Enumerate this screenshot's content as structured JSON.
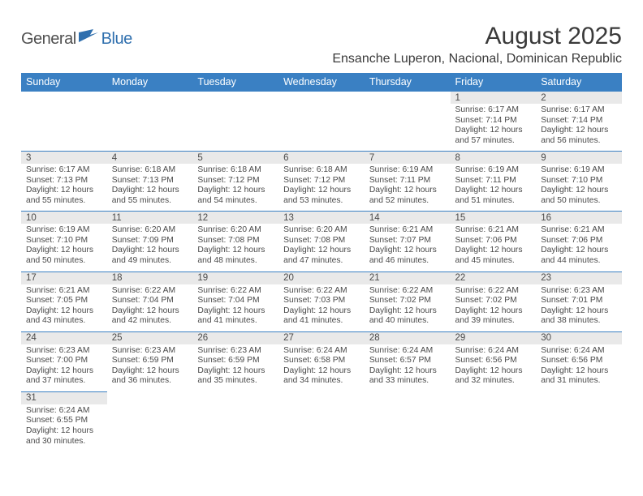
{
  "brand": {
    "general": "General",
    "blue": "Blue"
  },
  "title": "August 2025",
  "location": "Ensanche Luperon, Nacional, Dominican Republic",
  "colors": {
    "header_bg": "#3a80c3",
    "header_text": "#ffffff",
    "daynum_bg": "#e9e9e9",
    "row_divider": "#3a80c3",
    "body_text": "#4a4a4a",
    "logo_blue": "#2f6fae"
  },
  "weekdays": [
    "Sunday",
    "Monday",
    "Tuesday",
    "Wednesday",
    "Thursday",
    "Friday",
    "Saturday"
  ],
  "weeks": [
    [
      null,
      null,
      null,
      null,
      null,
      {
        "d": "1",
        "sr": "6:17 AM",
        "ss": "7:14 PM",
        "dl": "12 hours and 57 minutes."
      },
      {
        "d": "2",
        "sr": "6:17 AM",
        "ss": "7:14 PM",
        "dl": "12 hours and 56 minutes."
      }
    ],
    [
      {
        "d": "3",
        "sr": "6:17 AM",
        "ss": "7:13 PM",
        "dl": "12 hours and 55 minutes."
      },
      {
        "d": "4",
        "sr": "6:18 AM",
        "ss": "7:13 PM",
        "dl": "12 hours and 55 minutes."
      },
      {
        "d": "5",
        "sr": "6:18 AM",
        "ss": "7:12 PM",
        "dl": "12 hours and 54 minutes."
      },
      {
        "d": "6",
        "sr": "6:18 AM",
        "ss": "7:12 PM",
        "dl": "12 hours and 53 minutes."
      },
      {
        "d": "7",
        "sr": "6:19 AM",
        "ss": "7:11 PM",
        "dl": "12 hours and 52 minutes."
      },
      {
        "d": "8",
        "sr": "6:19 AM",
        "ss": "7:11 PM",
        "dl": "12 hours and 51 minutes."
      },
      {
        "d": "9",
        "sr": "6:19 AM",
        "ss": "7:10 PM",
        "dl": "12 hours and 50 minutes."
      }
    ],
    [
      {
        "d": "10",
        "sr": "6:19 AM",
        "ss": "7:10 PM",
        "dl": "12 hours and 50 minutes."
      },
      {
        "d": "11",
        "sr": "6:20 AM",
        "ss": "7:09 PM",
        "dl": "12 hours and 49 minutes."
      },
      {
        "d": "12",
        "sr": "6:20 AM",
        "ss": "7:08 PM",
        "dl": "12 hours and 48 minutes."
      },
      {
        "d": "13",
        "sr": "6:20 AM",
        "ss": "7:08 PM",
        "dl": "12 hours and 47 minutes."
      },
      {
        "d": "14",
        "sr": "6:21 AM",
        "ss": "7:07 PM",
        "dl": "12 hours and 46 minutes."
      },
      {
        "d": "15",
        "sr": "6:21 AM",
        "ss": "7:06 PM",
        "dl": "12 hours and 45 minutes."
      },
      {
        "d": "16",
        "sr": "6:21 AM",
        "ss": "7:06 PM",
        "dl": "12 hours and 44 minutes."
      }
    ],
    [
      {
        "d": "17",
        "sr": "6:21 AM",
        "ss": "7:05 PM",
        "dl": "12 hours and 43 minutes."
      },
      {
        "d": "18",
        "sr": "6:22 AM",
        "ss": "7:04 PM",
        "dl": "12 hours and 42 minutes."
      },
      {
        "d": "19",
        "sr": "6:22 AM",
        "ss": "7:04 PM",
        "dl": "12 hours and 41 minutes."
      },
      {
        "d": "20",
        "sr": "6:22 AM",
        "ss": "7:03 PM",
        "dl": "12 hours and 41 minutes."
      },
      {
        "d": "21",
        "sr": "6:22 AM",
        "ss": "7:02 PM",
        "dl": "12 hours and 40 minutes."
      },
      {
        "d": "22",
        "sr": "6:22 AM",
        "ss": "7:02 PM",
        "dl": "12 hours and 39 minutes."
      },
      {
        "d": "23",
        "sr": "6:23 AM",
        "ss": "7:01 PM",
        "dl": "12 hours and 38 minutes."
      }
    ],
    [
      {
        "d": "24",
        "sr": "6:23 AM",
        "ss": "7:00 PM",
        "dl": "12 hours and 37 minutes."
      },
      {
        "d": "25",
        "sr": "6:23 AM",
        "ss": "6:59 PM",
        "dl": "12 hours and 36 minutes."
      },
      {
        "d": "26",
        "sr": "6:23 AM",
        "ss": "6:59 PM",
        "dl": "12 hours and 35 minutes."
      },
      {
        "d": "27",
        "sr": "6:24 AM",
        "ss": "6:58 PM",
        "dl": "12 hours and 34 minutes."
      },
      {
        "d": "28",
        "sr": "6:24 AM",
        "ss": "6:57 PM",
        "dl": "12 hours and 33 minutes."
      },
      {
        "d": "29",
        "sr": "6:24 AM",
        "ss": "6:56 PM",
        "dl": "12 hours and 32 minutes."
      },
      {
        "d": "30",
        "sr": "6:24 AM",
        "ss": "6:56 PM",
        "dl": "12 hours and 31 minutes."
      }
    ],
    [
      {
        "d": "31",
        "sr": "6:24 AM",
        "ss": "6:55 PM",
        "dl": "12 hours and 30 minutes."
      },
      null,
      null,
      null,
      null,
      null,
      null
    ]
  ],
  "labels": {
    "sunrise_prefix": "Sunrise: ",
    "sunset_prefix": "Sunset: ",
    "daylight_prefix": "Daylight: "
  }
}
